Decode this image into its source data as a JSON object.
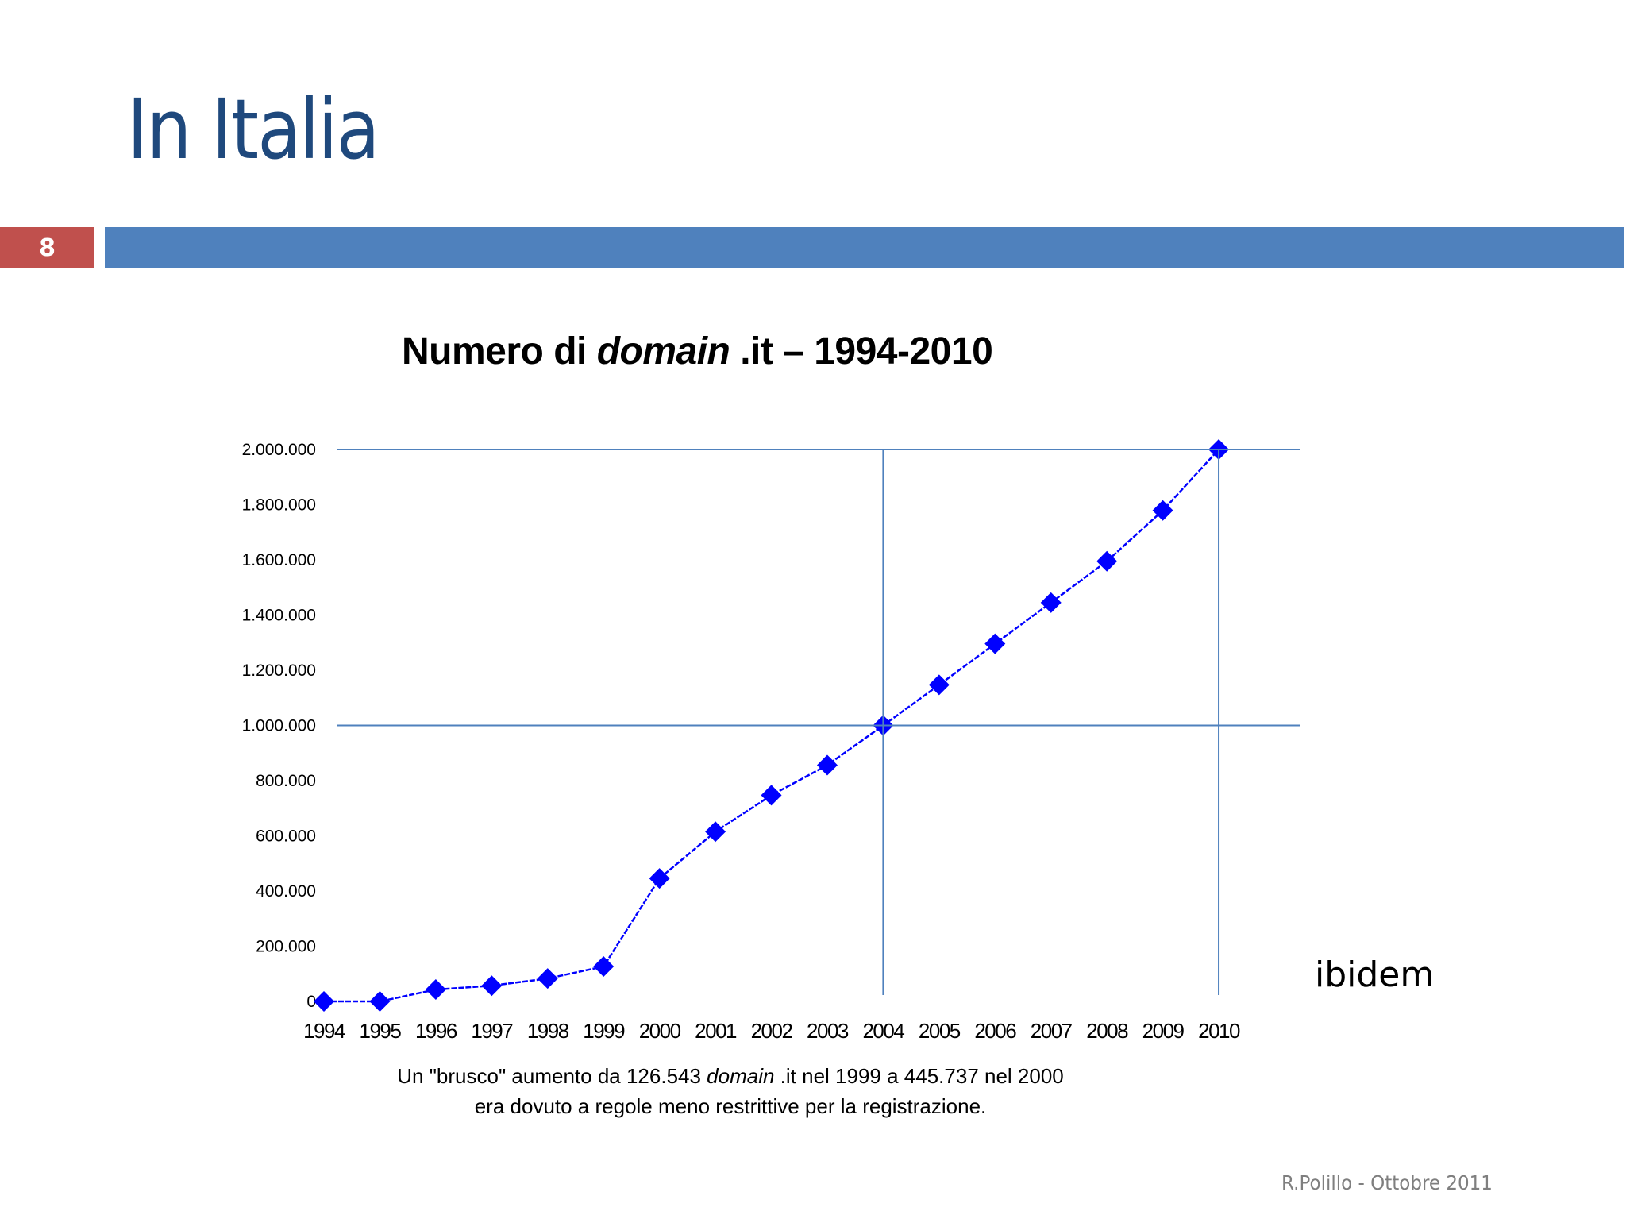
{
  "slide": {
    "title": "In Italia",
    "number": "8",
    "footer": "R.Polillo - Ottobre 2011",
    "source_note": "ibidem",
    "colors": {
      "title": "#1F497D",
      "number_box": "#C0504D",
      "header_bar": "#4F81BD",
      "footer_text": "#7F7F7F"
    }
  },
  "chart": {
    "title_prefix": "Numero di ",
    "title_italic": "domain",
    "title_suffix": " .it – 1994-2010",
    "caption_line1_a": "Un \"brusco\" aumento da 126.543 ",
    "caption_line1_italic": "domain",
    "caption_line1_b": " .it nel 1999 a 445.737 nel 2000",
    "caption_line2": "era dovuto a regole meno restrittive per la registrazione.",
    "line_color": "#0000FF",
    "grid_color": "#4F81BD"
  },
  "chart_data": {
    "type": "line",
    "title": "Numero di domain .it – 1994-2010",
    "xlabel": "",
    "ylabel": "",
    "categories": [
      "1994",
      "1995",
      "1996",
      "1997",
      "1998",
      "1999",
      "2000",
      "2001",
      "2002",
      "2003",
      "2004",
      "2005",
      "2006",
      "2007",
      "2008",
      "2009",
      "2010"
    ],
    "series": [
      {
        "name": "domain .it",
        "values": [
          0,
          0,
          43000,
          57000,
          83000,
          126543,
          445737,
          615000,
          747000,
          856000,
          1000000,
          1147000,
          1296000,
          1445000,
          1595000,
          1779000,
          2000000
        ]
      }
    ],
    "yticks": [
      "0",
      "200.000",
      "400.000",
      "600.000",
      "800.000",
      "1.000.000",
      "1.200.000",
      "1.400.000",
      "1.600.000",
      "1.800.000",
      "2.000.000"
    ],
    "ylim": [
      0,
      2000000
    ],
    "grid": {
      "horizontal_at": [
        1000000,
        2000000
      ],
      "vertical_at": [
        "2004",
        "2010"
      ]
    },
    "marker": "diamond",
    "legend": "none",
    "annotation": "Un \"brusco\" aumento da 126.543 domain .it nel 1999 a 445.737 nel 2000 era dovuto a regole meno restrittive per la registrazione."
  }
}
